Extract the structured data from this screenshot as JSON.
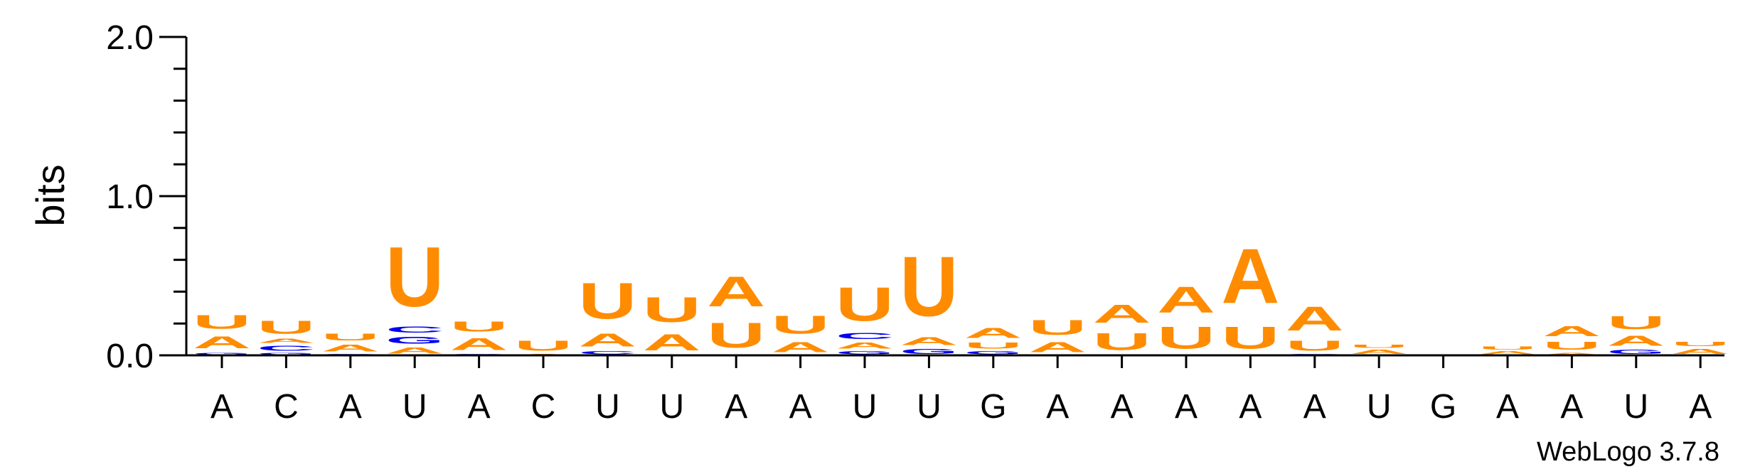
{
  "chart_data": {
    "type": "sequence-logo",
    "ylabel": "bits",
    "ylim": [
      0,
      2.0
    ],
    "yticks": [
      "0.0",
      "1.0",
      "2.0"
    ],
    "sequence": [
      "A",
      "C",
      "A",
      "U",
      "A",
      "C",
      "U",
      "U",
      "A",
      "A",
      "U",
      "U",
      "G",
      "A",
      "A",
      "A",
      "A",
      "A",
      "U",
      "G",
      "A",
      "A",
      "U",
      "A"
    ],
    "colors": {
      "A": "#ff8c00",
      "U": "#ff8c00",
      "C": "#0000ee",
      "G": "#0000ee"
    },
    "positions": [
      [
        [
          "G",
          0.02
        ],
        [
          "A",
          0.12
        ],
        [
          "U",
          0.14
        ]
      ],
      [
        [
          "G",
          0.02
        ],
        [
          "C",
          0.05
        ],
        [
          "A",
          0.04
        ],
        [
          "U",
          0.13
        ]
      ],
      [
        [
          "G",
          0.01
        ],
        [
          "A",
          0.07
        ],
        [
          "U",
          0.07
        ]
      ],
      [
        [
          "A",
          0.06
        ],
        [
          "G",
          0.07
        ],
        [
          "C",
          0.06
        ],
        [
          "U",
          0.6
        ]
      ],
      [
        [
          "G",
          0.01
        ],
        [
          "A",
          0.12
        ],
        [
          "U",
          0.1
        ]
      ],
      [
        [
          "A",
          0.01
        ],
        [
          "U",
          0.1
        ]
      ],
      [
        [
          "C",
          0.03
        ],
        [
          "A",
          0.13
        ],
        [
          "U",
          0.36
        ]
      ],
      [
        [
          "A",
          0.16
        ],
        [
          "U",
          0.25
        ]
      ],
      [
        [
          "U",
          0.25
        ],
        [
          "A",
          0.3
        ]
      ],
      [
        [
          "A",
          0.1
        ],
        [
          "U",
          0.18
        ]
      ],
      [
        [
          "G",
          0.03
        ],
        [
          "A",
          0.06
        ],
        [
          "C",
          0.06
        ],
        [
          "U",
          0.34
        ]
      ],
      [
        [
          "G",
          0.05
        ],
        [
          "A",
          0.08
        ],
        [
          "U",
          0.6
        ]
      ],
      [
        [
          "G",
          0.03
        ],
        [
          "U",
          0.06
        ],
        [
          "A",
          0.1
        ]
      ],
      [
        [
          "A",
          0.1
        ],
        [
          "U",
          0.15
        ]
      ],
      [
        [
          "U",
          0.17
        ],
        [
          "A",
          0.18
        ]
      ],
      [
        [
          "U",
          0.22
        ],
        [
          "A",
          0.26
        ]
      ],
      [
        [
          "U",
          0.22
        ],
        [
          "A",
          0.55
        ]
      ],
      [
        [
          "G",
          0.01
        ],
        [
          "U",
          0.1
        ],
        [
          "A",
          0.24
        ]
      ],
      [
        [
          "A",
          0.04
        ],
        [
          "U",
          0.03
        ]
      ],
      [
        [
          "A",
          0.005
        ]
      ],
      [
        [
          "A",
          0.03
        ],
        [
          "U",
          0.03
        ]
      ],
      [
        [
          "A",
          0.02
        ],
        [
          "U",
          0.08
        ],
        [
          "A",
          0.1
        ]
      ],
      [
        [
          "G",
          0.04
        ],
        [
          "A",
          0.1
        ],
        [
          "U",
          0.13
        ]
      ],
      [
        [
          "A",
          0.05
        ],
        [
          "U",
          0.04
        ]
      ]
    ]
  },
  "credit": "WebLogo 3.7.8"
}
